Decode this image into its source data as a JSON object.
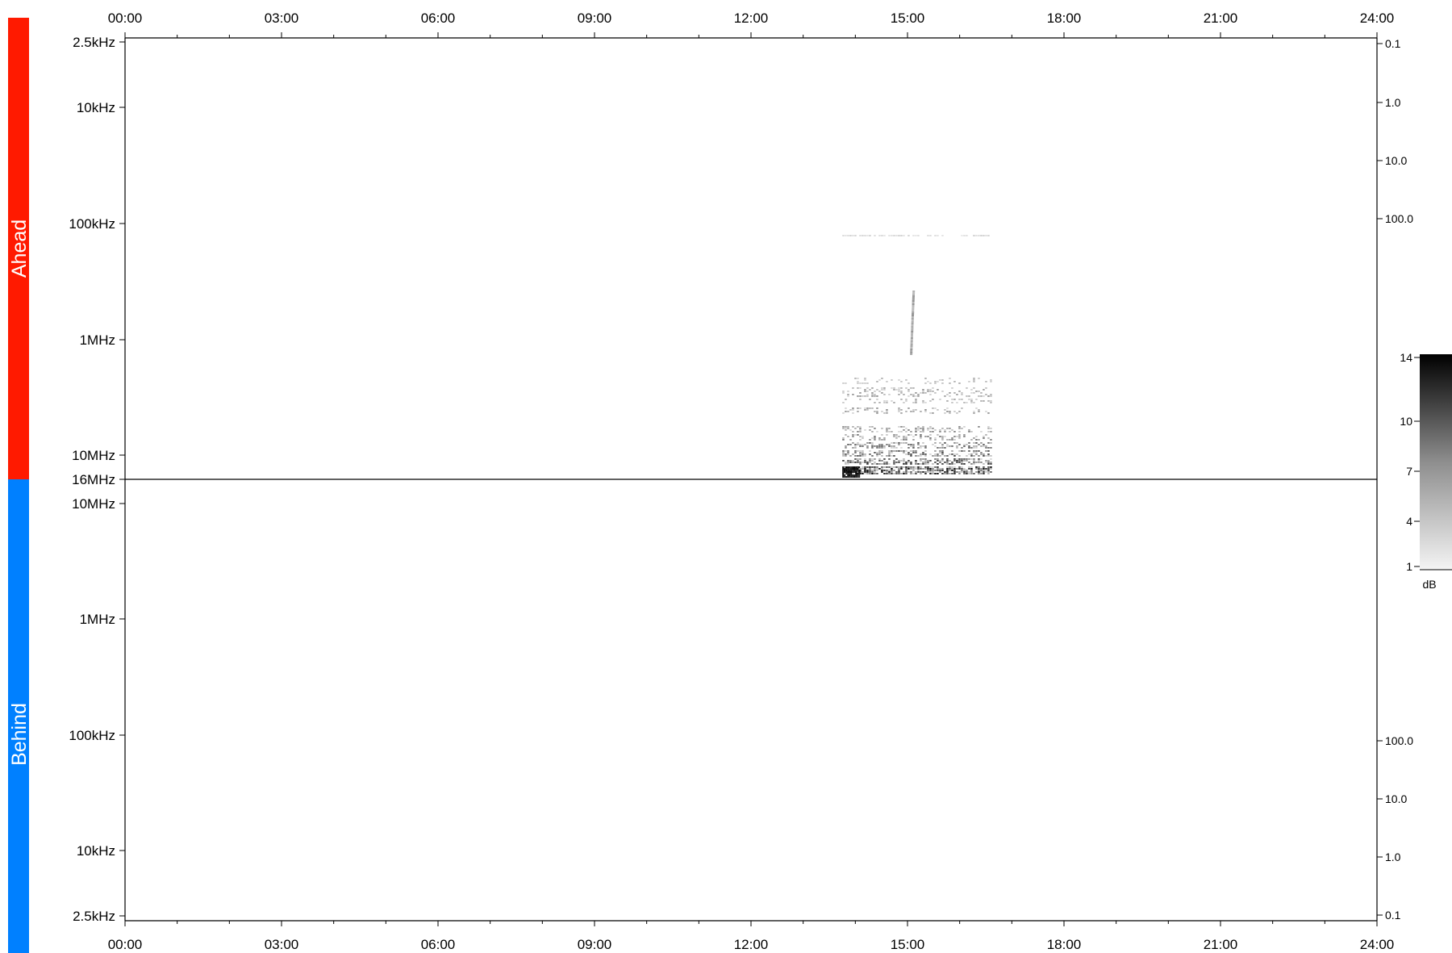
{
  "chart_data": {
    "type": "heatmap",
    "panels": [
      {
        "label": "Ahead",
        "color": "#ff1a00",
        "yaxis_left": [
          "2.5kHz",
          "10kHz",
          "100kHz",
          "1MHz",
          "10MHz",
          "16MHz"
        ],
        "yaxis_right": [
          "0.1",
          "1.0",
          "10.0",
          "100.0"
        ]
      },
      {
        "label": "Behind",
        "color": "#0080ff",
        "yaxis_left": [
          "10MHz",
          "1MHz",
          "100kHz",
          "10kHz",
          "2.5kHz"
        ],
        "yaxis_right": [
          "100.0",
          "10.0",
          "1.0",
          "0.1"
        ]
      }
    ],
    "x_ticks": [
      "00:00",
      "03:00",
      "06:00",
      "09:00",
      "12:00",
      "15:00",
      "18:00",
      "21:00",
      "24:00"
    ],
    "colorbar": {
      "ticks": [
        "14",
        "10",
        "7",
        "4",
        "1"
      ],
      "unit": "dB",
      "range": [
        1,
        14
      ]
    },
    "burst_activity": {
      "time_range": [
        "13:45",
        "16:35"
      ],
      "freq_range": [
        "100kHz",
        "16MHz"
      ],
      "panel": "Ahead"
    }
  }
}
